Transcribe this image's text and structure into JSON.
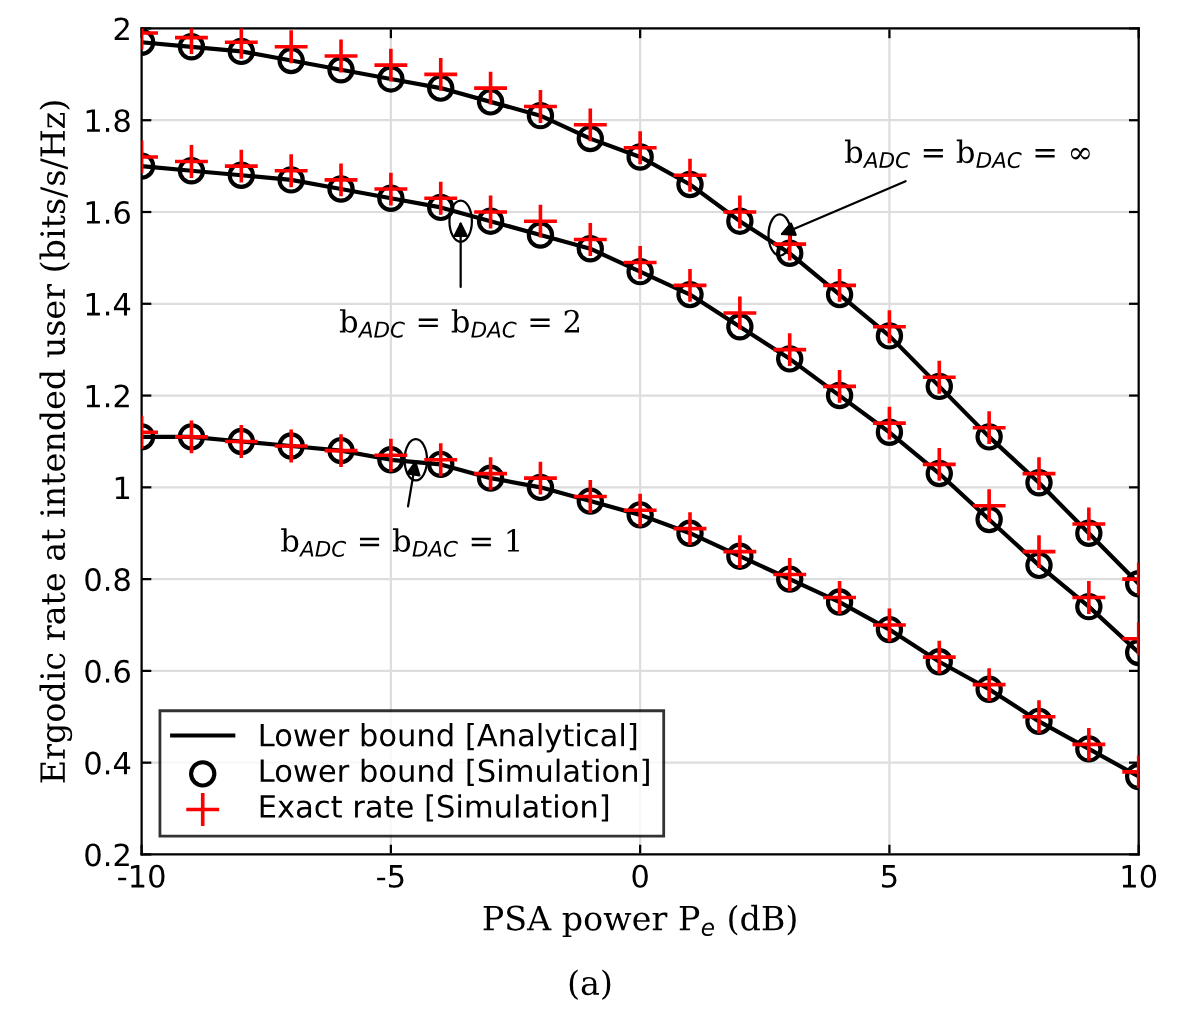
{
  "chart_data": {
    "type": "line",
    "xlabel": "PSA power P$_{e}$ (dB)",
    "ylabel": "Ergodic rate at intended user (bits/s/Hz)",
    "x": [
      -10,
      -9,
      -8,
      -7,
      -6,
      -5,
      -4,
      -3,
      -2,
      -1,
      0,
      1,
      2,
      3,
      4,
      5,
      6,
      7,
      8,
      9,
      10
    ],
    "xlim": [
      -10,
      10
    ],
    "xticks": [
      -10,
      -5,
      0,
      5,
      10
    ],
    "ylim": [
      0.2,
      2
    ],
    "yticks": [
      0.2,
      0.4,
      0.6,
      0.8,
      1,
      1.2,
      1.4,
      1.6,
      1.8,
      2
    ],
    "grid": true,
    "legend": "bottom left",
    "series": [
      {
        "name": "Lower bound [Analytical]",
        "color": "#000000",
        "marker": "none",
        "line_style": "solid",
        "values": [
          1.97,
          1.96,
          1.95,
          1.93,
          1.91,
          1.89,
          1.87,
          1.84,
          1.81,
          1.76,
          1.72,
          1.66,
          1.58,
          1.51,
          1.42,
          1.33,
          1.22,
          1.11,
          1.01,
          0.9,
          0.79
        ]
      },
      {
        "name": "Lower bound [Simulation]",
        "type": "scatter",
        "color": "#000000",
        "marker": "circle",
        "values": [
          1.97,
          1.96,
          1.95,
          1.93,
          1.91,
          1.89,
          1.87,
          1.84,
          1.81,
          1.76,
          1.72,
          1.66,
          1.58,
          1.51,
          1.42,
          1.33,
          1.22,
          1.11,
          1.01,
          0.9,
          0.79
        ]
      },
      {
        "name": "Exact rate [Simulation]",
        "type": "scatter",
        "color": "#ff0000",
        "marker": "cross",
        "values": [
          1.99,
          1.98,
          1.97,
          1.96,
          1.94,
          1.92,
          1.9,
          1.87,
          1.83,
          1.79,
          1.74,
          1.68,
          1.6,
          1.53,
          1.44,
          1.35,
          1.24,
          1.13,
          1.03,
          0.92,
          0.8
        ]
      },
      {
        "color": "#000000",
        "marker": "none",
        "line_style": "solid",
        "values": [
          1.7,
          1.69,
          1.68,
          1.67,
          1.65,
          1.63,
          1.61,
          1.58,
          1.55,
          1.52,
          1.47,
          1.42,
          1.35,
          1.28,
          1.2,
          1.12,
          1.03,
          0.93,
          0.83,
          0.74,
          0.64
        ]
      },
      {
        "type": "scatter",
        "color": "#000000",
        "marker": "circle",
        "values": [
          1.7,
          1.69,
          1.68,
          1.67,
          1.65,
          1.63,
          1.61,
          1.58,
          1.55,
          1.52,
          1.47,
          1.42,
          1.35,
          1.28,
          1.2,
          1.12,
          1.03,
          0.93,
          0.83,
          0.74,
          0.64
        ]
      },
      {
        "type": "scatter",
        "color": "#ff0000",
        "marker": "cross",
        "values": [
          1.72,
          1.71,
          1.7,
          1.69,
          1.67,
          1.65,
          1.63,
          1.6,
          1.58,
          1.54,
          1.49,
          1.44,
          1.38,
          1.3,
          1.22,
          1.14,
          1.05,
          0.96,
          0.86,
          0.76,
          0.67
        ]
      },
      {
        "color": "#000000",
        "marker": "none",
        "line_style": "solid",
        "values": [
          1.11,
          1.11,
          1.1,
          1.09,
          1.08,
          1.06,
          1.05,
          1.02,
          1.0,
          0.97,
          0.94,
          0.9,
          0.85,
          0.8,
          0.75,
          0.69,
          0.62,
          0.56,
          0.49,
          0.43,
          0.37
        ]
      },
      {
        "type": "scatter",
        "color": "#000000",
        "marker": "circle",
        "values": [
          1.11,
          1.11,
          1.1,
          1.09,
          1.08,
          1.06,
          1.05,
          1.02,
          1.0,
          0.97,
          0.94,
          0.9,
          0.85,
          0.8,
          0.75,
          0.69,
          0.62,
          0.56,
          0.49,
          0.43,
          0.37
        ]
      },
      {
        "type": "scatter",
        "color": "#ff0000",
        "marker": "cross",
        "values": [
          1.12,
          1.11,
          1.1,
          1.09,
          1.08,
          1.07,
          1.06,
          1.03,
          1.02,
          0.98,
          0.95,
          0.91,
          0.86,
          0.81,
          0.76,
          0.7,
          0.63,
          0.57,
          0.5,
          0.44,
          0.38
        ]
      }
    ],
    "annotations": [
      {
        "text": "b$_{ADC}$ = b$_{DAC}$ = ∞",
        "x": 2.8,
        "y": 1.55
      },
      {
        "text": "b$_{ADC}$ = b$_{DAC}$ = 2",
        "x": -3.6,
        "y": 1.58
      },
      {
        "text": "b$_{ADC}$ = b$_{DAC}$ = 1",
        "x": -4.5,
        "y": 1.06
      },
      "(a)"
    ]
  }
}
